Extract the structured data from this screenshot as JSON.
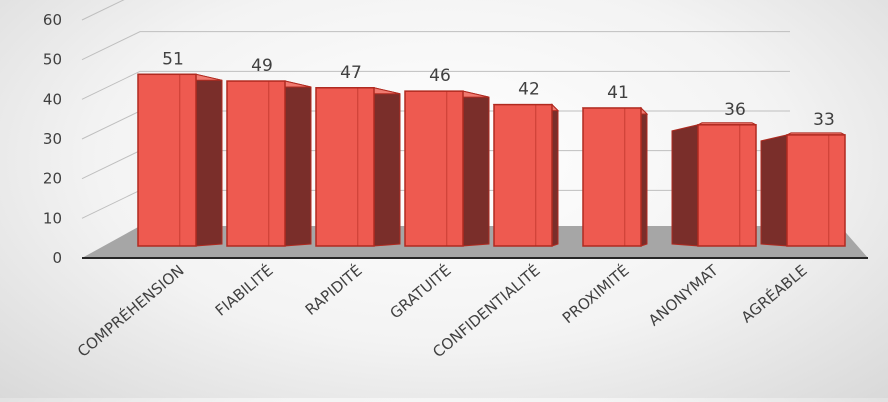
{
  "chart_data": {
    "type": "bar",
    "style": "3d-column",
    "categories": [
      "COMPRÉHENSION",
      "FIABILITÉ",
      "RAPIDITÉ",
      "GRATUITÉ",
      "CONFIDENTIALITÉ",
      "PROXIMITÉ",
      "ANONYMAT",
      "AGRÉABLE"
    ],
    "values": [
      51,
      49,
      47,
      46,
      42,
      41,
      36,
      33
    ],
    "ylim": [
      0,
      60
    ],
    "yticks": [
      "0",
      "10",
      "20",
      "30",
      "40",
      "50",
      "60"
    ],
    "grid": true,
    "data_labels": true,
    "colors": {
      "bar_front": "#ee5a50",
      "bar_top": "#f07a70",
      "bar_side": "#7a2e2a",
      "bar_edge": "#b02a20",
      "floor": "#a6a6a6",
      "grid": "#bfbfbf",
      "axis_line": "#262626"
    }
  }
}
